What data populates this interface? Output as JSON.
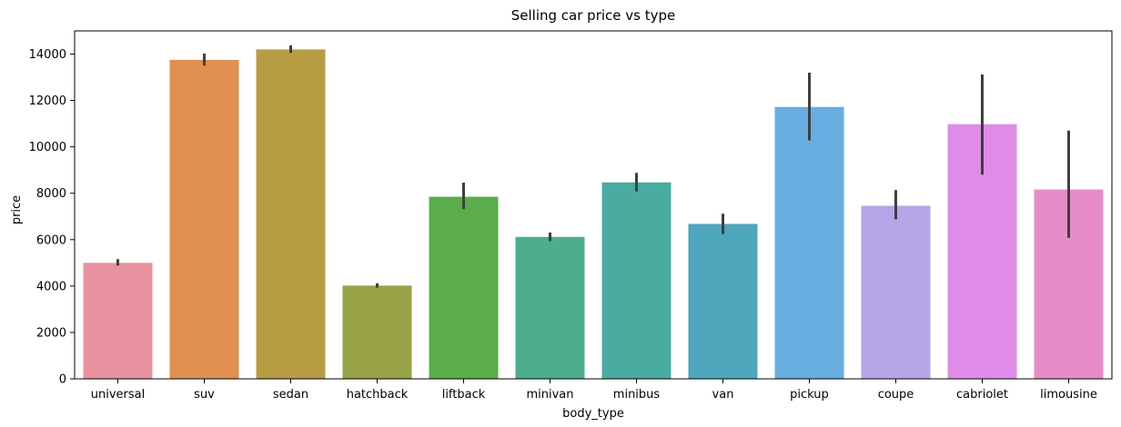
{
  "chart_data": {
    "type": "bar",
    "title": "Selling car price vs type",
    "xlabel": "body_type",
    "ylabel": "price",
    "ylim": [
      0,
      15000
    ],
    "yticks": [
      0,
      2000,
      4000,
      6000,
      8000,
      10000,
      12000,
      14000
    ],
    "grid": false,
    "legend": "none",
    "categories": [
      "universal",
      "suv",
      "sedan",
      "hatchback",
      "liftback",
      "minivan",
      "minibus",
      "van",
      "pickup",
      "coupe",
      "cabriolet",
      "limousine"
    ],
    "values": [
      5000,
      13750,
      14200,
      4020,
      7850,
      6120,
      8470,
      6680,
      11720,
      7460,
      10980,
      8160
    ],
    "error_low": [
      4880,
      13500,
      14050,
      3930,
      7320,
      5930,
      8080,
      6240,
      10280,
      6880,
      8800,
      6080
    ],
    "error_high": [
      5160,
      14020,
      14380,
      4120,
      8460,
      6310,
      8880,
      7120,
      13200,
      8140,
      13120,
      10700
    ],
    "colors": [
      "#e8929f",
      "#e08f4f",
      "#b89c44",
      "#98a347",
      "#5aad4a",
      "#4cae8d",
      "#4aaba1",
      "#4ea7bd",
      "#67ade0",
      "#b4a5e8",
      "#de8ce8",
      "#e68cc6"
    ],
    "errorbar_color": "#3f3f3f"
  }
}
